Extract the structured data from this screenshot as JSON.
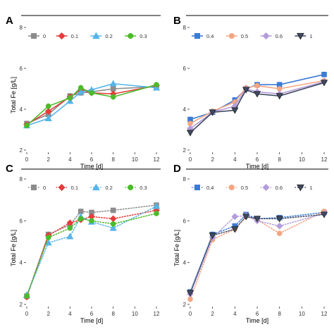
{
  "chart_data": [
    {
      "type": "line",
      "panel": "A",
      "ylabel": "Total Fe [g/L]",
      "xlabel": "Time [d]",
      "xlim": [
        0,
        12
      ],
      "ylim": [
        2,
        8
      ],
      "xticks": [
        "0",
        "2",
        "4",
        "6",
        "8",
        "10",
        "12"
      ],
      "yticks": [
        "2",
        "4",
        "6",
        "8"
      ],
      "line_style": "solid",
      "legend_position": "top-left",
      "x": [
        0,
        2,
        4,
        5,
        6,
        8,
        12
      ],
      "series": [
        {
          "name": "0",
          "color": "#8c8c8c",
          "marker": "square",
          "values": [
            3.3,
            3.75,
            4.65,
            4.8,
            4.85,
            5.0,
            5.1
          ]
        },
        {
          "name": "0.1",
          "color": "#e63b3b",
          "marker": "diamond",
          "values": [
            3.25,
            3.9,
            4.6,
            4.95,
            4.8,
            4.75,
            5.15
          ]
        },
        {
          "name": "0.2",
          "color": "#56b4e9",
          "marker": "triangle",
          "values": [
            3.2,
            3.55,
            4.4,
            4.85,
            4.95,
            5.25,
            5.05
          ]
        },
        {
          "name": "0.3",
          "color": "#4cbb2a",
          "marker": "circle",
          "values": [
            3.2,
            4.15,
            4.55,
            5.05,
            4.8,
            4.6,
            5.2
          ]
        }
      ]
    },
    {
      "type": "line",
      "panel": "B",
      "ylabel": "",
      "xlabel": "Time [d]",
      "xlim": [
        0,
        12
      ],
      "ylim": [
        2,
        8
      ],
      "xticks": [
        "0",
        "2",
        "4",
        "6",
        "8",
        "10",
        "12"
      ],
      "yticks": [
        "2",
        "4",
        "6",
        "8"
      ],
      "line_style": "solid",
      "legend_position": "top-left",
      "x": [
        0,
        2,
        4,
        5,
        6,
        8,
        12
      ],
      "series": [
        {
          "name": "0.4",
          "color": "#3a7bd5",
          "marker": "square",
          "values": [
            3.5,
            3.85,
            4.45,
            5.0,
            5.2,
            5.2,
            5.7
          ]
        },
        {
          "name": "0.5",
          "color": "#f4a582",
          "marker": "circle",
          "values": [
            3.3,
            3.9,
            4.35,
            5.05,
            5.15,
            5.0,
            5.4
          ]
        },
        {
          "name": "0.6",
          "color": "#b39ddb",
          "marker": "diamond",
          "values": [
            3.05,
            3.85,
            4.15,
            5.0,
            4.85,
            4.75,
            5.35
          ]
        },
        {
          "name": "1",
          "color": "#404a62",
          "marker": "triangle-down",
          "values": [
            2.85,
            3.85,
            3.95,
            4.95,
            4.75,
            4.65,
            5.3
          ]
        }
      ]
    },
    {
      "type": "line",
      "panel": "C",
      "ylabel": "Total Fe [g/L]",
      "xlabel": "Time [d]",
      "xlim": [
        0,
        12
      ],
      "ylim": [
        2,
        8
      ],
      "xticks": [
        "0",
        "2",
        "4",
        "6",
        "8",
        "10",
        "12"
      ],
      "yticks": [
        "2",
        "4",
        "6",
        "8"
      ],
      "line_style": "dotted",
      "legend_position": "top-left",
      "x": [
        0,
        2,
        4,
        5,
        6,
        8,
        12
      ],
      "series": [
        {
          "name": "0",
          "color": "#8c8c8c",
          "marker": "square",
          "values": [
            2.4,
            5.35,
            5.8,
            6.45,
            6.4,
            6.5,
            6.75
          ]
        },
        {
          "name": "0.1",
          "color": "#e63b3b",
          "marker": "diamond",
          "values": [
            2.35,
            5.3,
            5.9,
            6.05,
            6.2,
            6.1,
            6.5
          ]
        },
        {
          "name": "0.2",
          "color": "#56b4e9",
          "marker": "triangle",
          "values": [
            2.45,
            4.95,
            5.25,
            6.2,
            5.95,
            5.65,
            6.7
          ]
        },
        {
          "name": "0.3",
          "color": "#4cbb2a",
          "marker": "circle",
          "values": [
            2.4,
            5.2,
            5.65,
            6.1,
            6.0,
            5.85,
            6.35
          ]
        }
      ]
    },
    {
      "type": "line",
      "panel": "D",
      "ylabel": "Total Fe [g/L]",
      "xlabel": "Time [d]",
      "xlim": [
        0,
        12
      ],
      "ylim": [
        2,
        8
      ],
      "xticks": [
        "0",
        "2",
        "4",
        "6",
        "8",
        "10",
        "12"
      ],
      "yticks": [
        "2",
        "4",
        "6",
        "8"
      ],
      "line_style": "dotted",
      "legend_position": "top-left",
      "x": [
        0,
        2,
        4,
        5,
        6,
        8,
        12
      ],
      "series": [
        {
          "name": "0.4",
          "color": "#3a7bd5",
          "marker": "square",
          "values": [
            2.6,
            5.35,
            5.75,
            6.3,
            6.1,
            6.15,
            6.4
          ]
        },
        {
          "name": "0.5",
          "color": "#f4a582",
          "marker": "circle",
          "values": [
            2.25,
            5.1,
            5.6,
            6.2,
            6.05,
            5.4,
            6.45
          ]
        },
        {
          "name": "0.6",
          "color": "#b39ddb",
          "marker": "diamond",
          "values": [
            2.5,
            5.2,
            6.2,
            6.25,
            6.0,
            5.75,
            6.35
          ]
        },
        {
          "name": "1",
          "color": "#404a62",
          "marker": "triangle-down",
          "values": [
            2.55,
            5.3,
            5.6,
            6.2,
            6.1,
            6.1,
            6.3
          ]
        }
      ]
    }
  ]
}
